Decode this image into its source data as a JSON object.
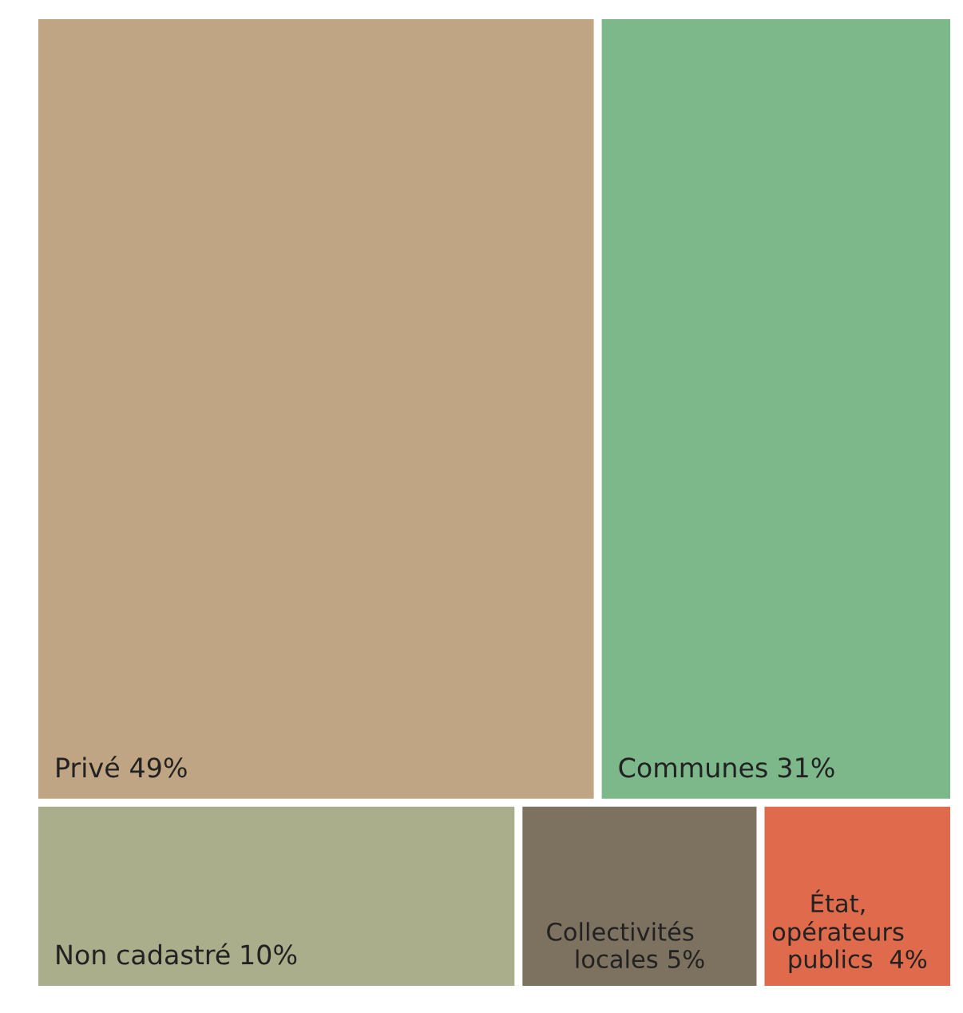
{
  "chart_data": {
    "type": "other",
    "categories": [
      "Privé",
      "Communes",
      "Non cadastré",
      "Collectivités\nlocales",
      "État,\nopérateurs\npublics "
    ],
    "values": [
      49,
      31,
      10,
      5,
      4
    ],
    "value_labels": [
      "49%",
      "31%",
      "10%",
      "5%",
      "4%"
    ],
    "colors": [
      "#bfa584",
      "#7db88a",
      "#aaae8a",
      "#7d7260",
      "#e06a4c"
    ]
  }
}
